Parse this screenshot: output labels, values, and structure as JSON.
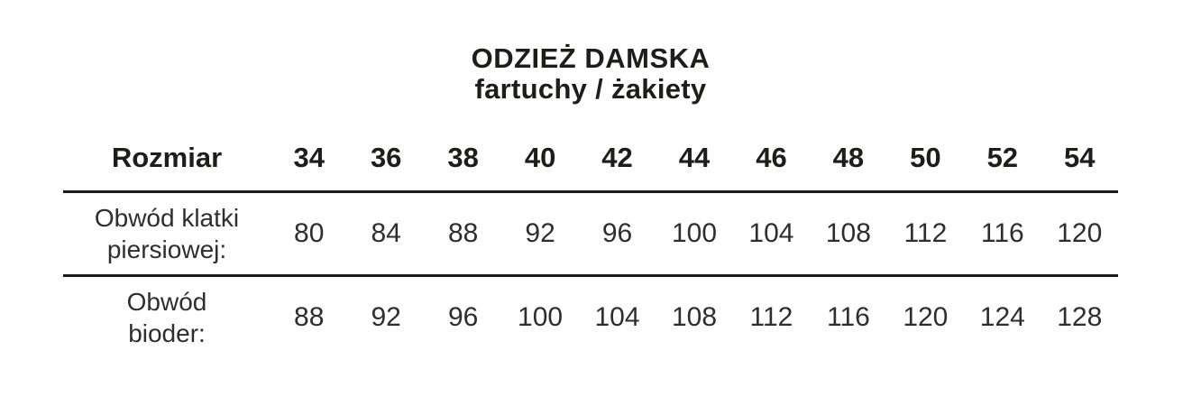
{
  "title": "ODZIEŻ DAMSKA",
  "subtitle": "fartuchy / żakiety",
  "table": {
    "header_label": "Rozmiar",
    "sizes": [
      "34",
      "36",
      "38",
      "40",
      "42",
      "44",
      "46",
      "48",
      "50",
      "52",
      "54"
    ],
    "rows": [
      {
        "label_line1": "Obwód klatki",
        "label_line2": "piersiowej:",
        "values": [
          "80",
          "84",
          "88",
          "92",
          "96",
          "100",
          "104",
          "108",
          "112",
          "116",
          "120"
        ]
      },
      {
        "label_line1": "Obwód",
        "label_line2": "bioder:",
        "values": [
          "88",
          "92",
          "96",
          "100",
          "104",
          "108",
          "112",
          "116",
          "120",
          "124",
          "128"
        ]
      }
    ]
  },
  "colors": {
    "text_bold": "#1d1d1b",
    "text_data": "#2e2e2e",
    "rule": "#1a1a1a",
    "background": "#ffffff"
  }
}
